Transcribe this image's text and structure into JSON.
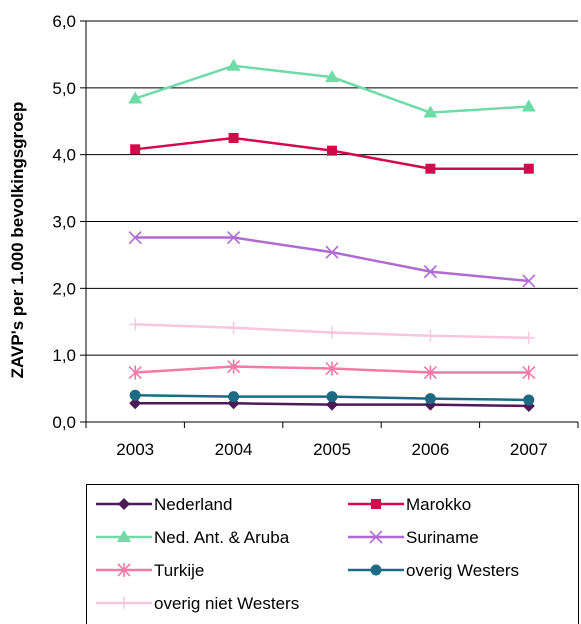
{
  "chart_data": {
    "type": "line",
    "title": "",
    "xlabel": "",
    "ylabel": "ZAVP's per 1.000 bevolkingsgroep",
    "x": [
      "2003",
      "2004",
      "2005",
      "2006",
      "2007"
    ],
    "ylim": [
      0,
      6
    ],
    "yticks": [
      "0,0",
      "1,0",
      "2,0",
      "3,0",
      "4,0",
      "5,0",
      "6,0"
    ],
    "grid": true,
    "legend_position": "bottom",
    "series": [
      {
        "name": "Nederland",
        "values": [
          0.28,
          0.28,
          0.26,
          0.26,
          0.24
        ],
        "color": "#4b1a57",
        "marker": "diamond"
      },
      {
        "name": "Marokko",
        "values": [
          4.08,
          4.25,
          4.06,
          3.79,
          3.79
        ],
        "color": "#d00a4b",
        "marker": "square"
      },
      {
        "name": "Ned. Ant. & Aruba",
        "values": [
          4.84,
          5.33,
          5.16,
          4.63,
          4.72
        ],
        "color": "#6fdba6",
        "marker": "triangle"
      },
      {
        "name": "Suriname",
        "values": [
          2.76,
          2.76,
          2.54,
          2.25,
          2.11
        ],
        "color": "#b06ad3",
        "marker": "x"
      },
      {
        "name": "Turkije",
        "values": [
          0.74,
          0.83,
          0.8,
          0.74,
          0.74
        ],
        "color": "#f27ba6",
        "marker": "star"
      },
      {
        "name": "overig Westers",
        "values": [
          0.4,
          0.38,
          0.38,
          0.35,
          0.33
        ],
        "color": "#1e6a85",
        "marker": "circle"
      },
      {
        "name": "overig niet Westers",
        "values": [
          1.46,
          1.41,
          1.34,
          1.29,
          1.26
        ],
        "color": "#f7c6dc",
        "marker": "plus"
      }
    ]
  }
}
